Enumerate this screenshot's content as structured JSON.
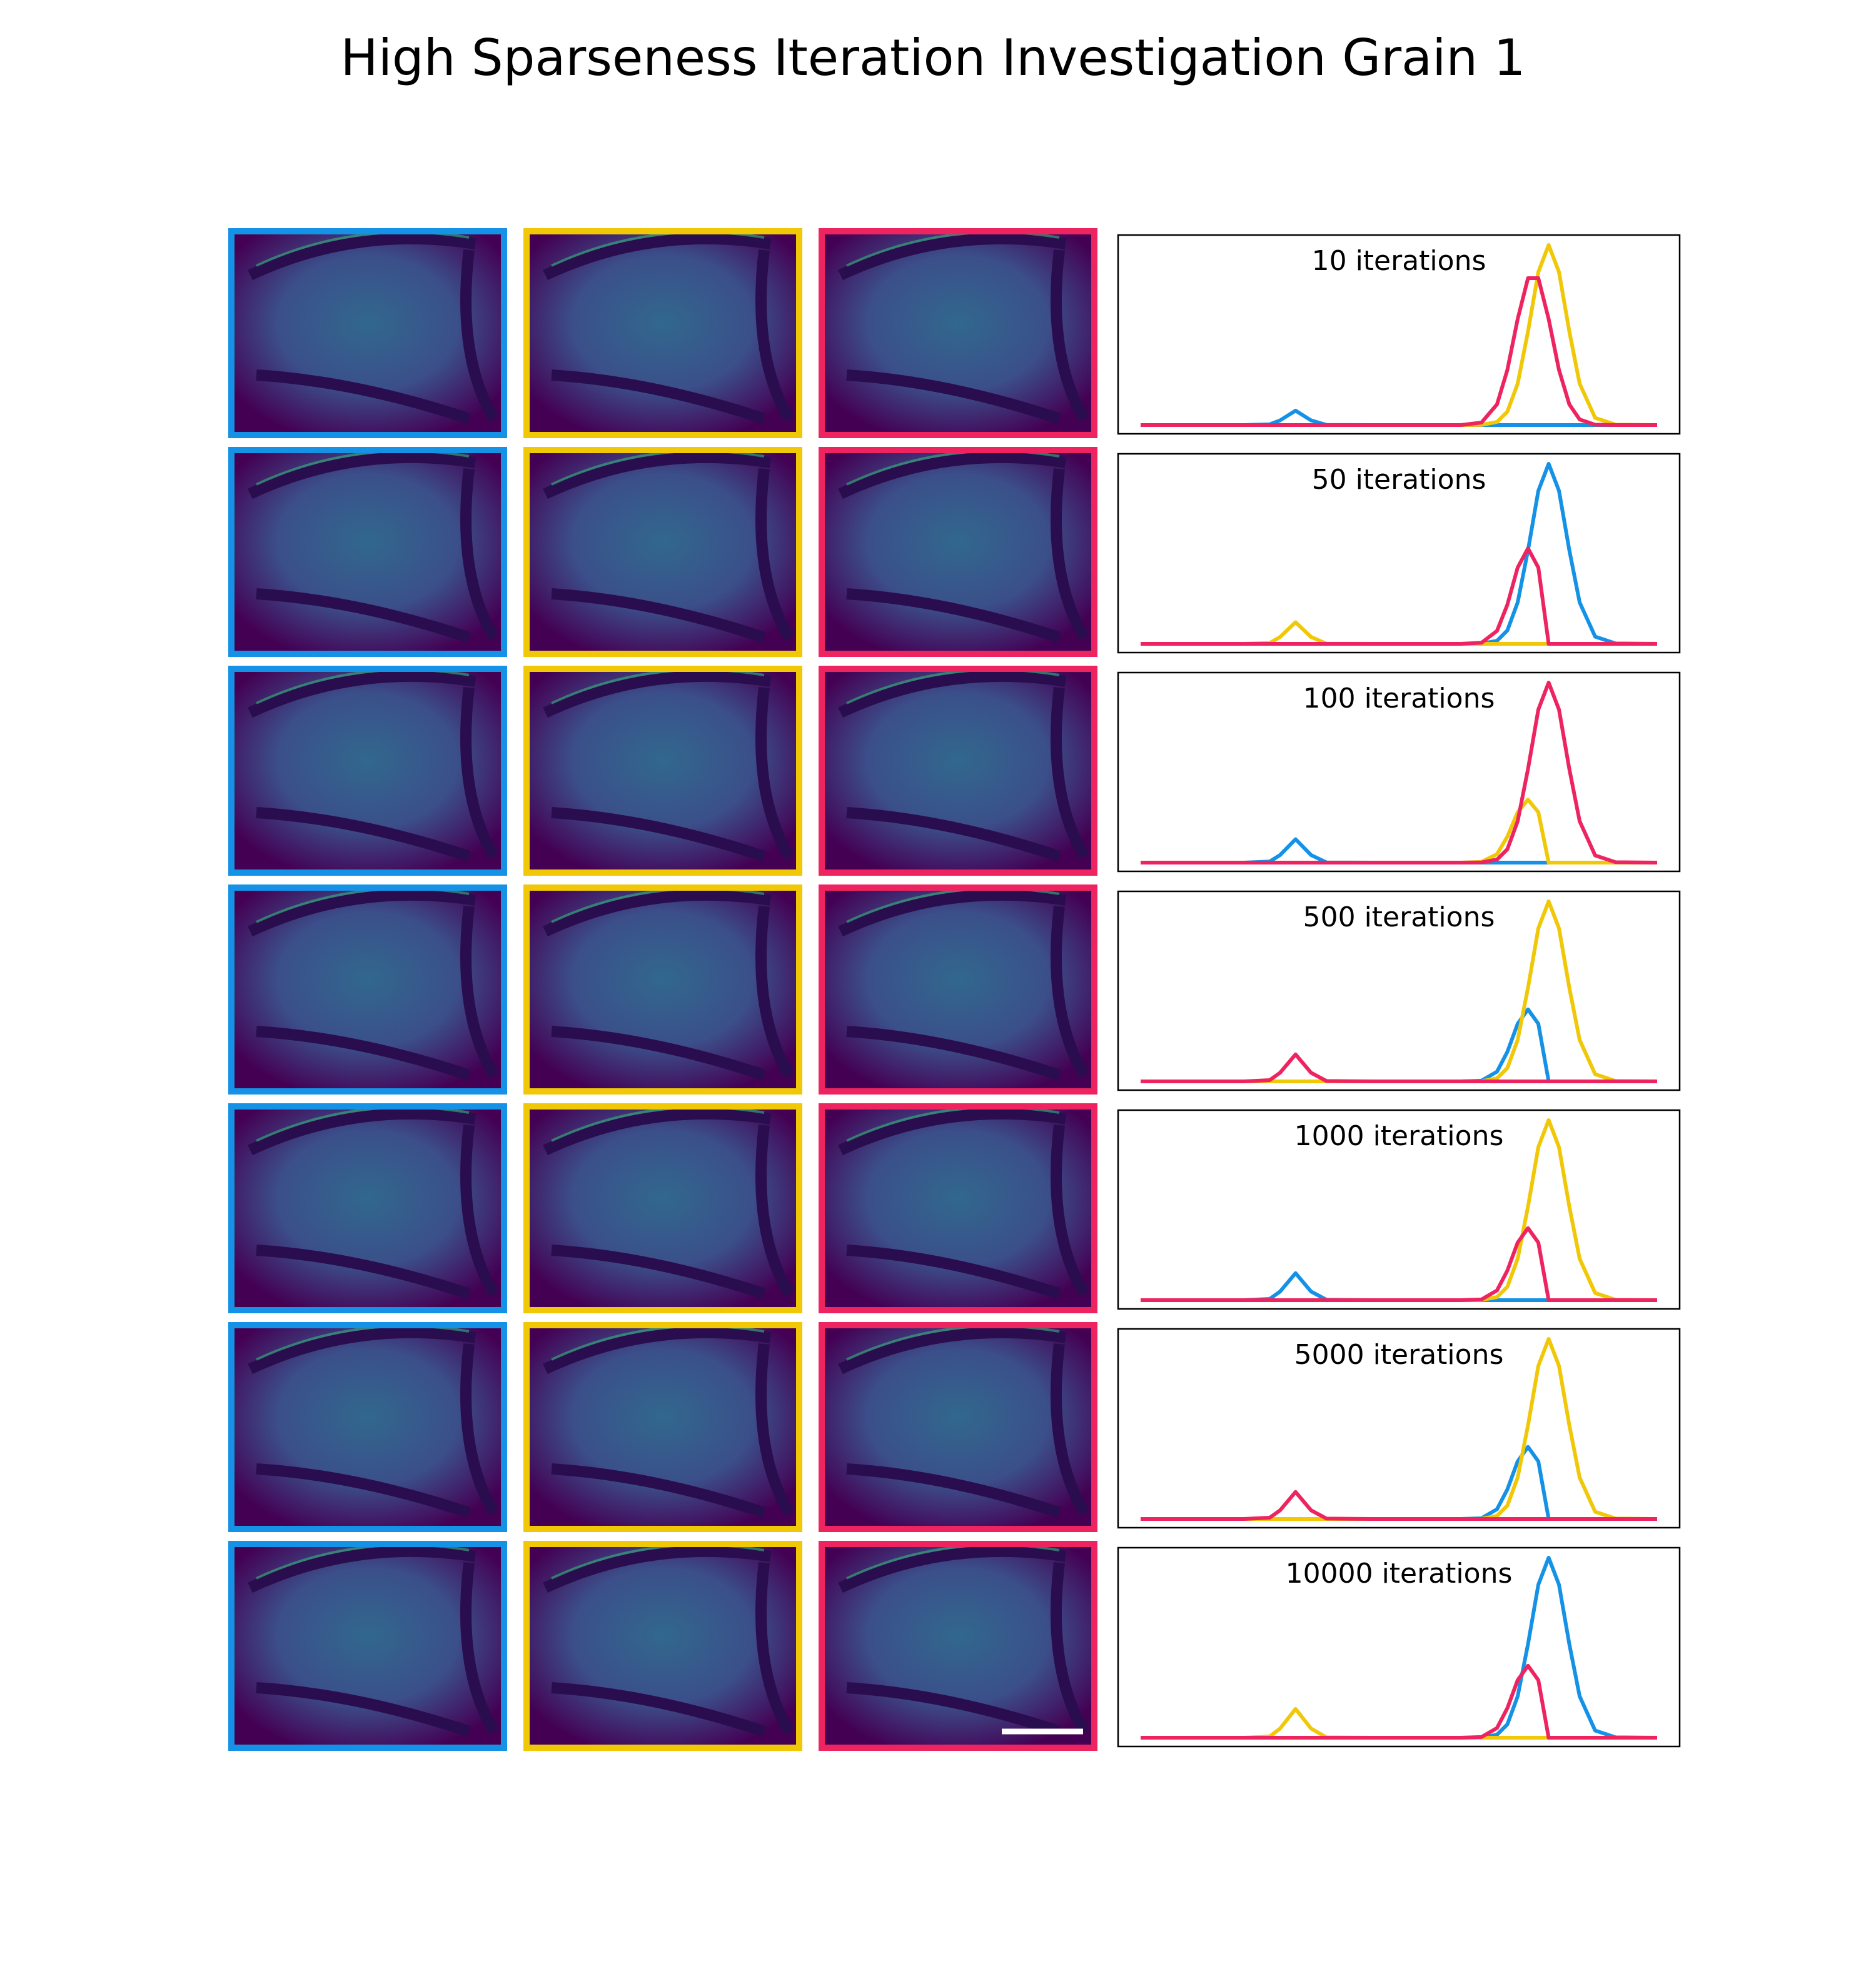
{
  "title": "High Sparseness Iteration Investigation Grain 1",
  "chart_data": [
    {
      "type": "line",
      "title": "10 iterations",
      "xlim": [
        0,
        100
      ],
      "ylim": [
        0,
        1
      ],
      "x": [
        0,
        6,
        12,
        20,
        25,
        27,
        30,
        33,
        36,
        45,
        55,
        62,
        66,
        69,
        71,
        73,
        75,
        77,
        79,
        81,
        83,
        85,
        88,
        92,
        100
      ],
      "series": [
        {
          "color": "#1592e6",
          "values": [
            0,
            0,
            0,
            0,
            0.004,
            0.026,
            0.08,
            0.026,
            0.001,
            0,
            0,
            0,
            0,
            0,
            0,
            0,
            0,
            0,
            0,
            0,
            0,
            0,
            0,
            0,
            0
          ]
        },
        {
          "color": "#f0c808",
          "values": [
            0,
            0,
            0,
            0,
            0,
            0,
            0,
            0,
            0,
            0,
            0,
            0,
            0.001,
            0.017,
            0.074,
            0.23,
            0.52,
            0.85,
            1,
            0.85,
            0.52,
            0.23,
            0.04,
            0.002,
            0
          ]
        },
        {
          "color": "#ee2461",
          "values": [
            0,
            0,
            0,
            0,
            0,
            0,
            0,
            0,
            0,
            0,
            0,
            0,
            0.014,
            0.115,
            0.306,
            0.589,
            0.816,
            0.816,
            0.589,
            0.306,
            0.115,
            0.031,
            0.002,
            0,
            0
          ]
        }
      ]
    },
    {
      "type": "line",
      "title": "50 iterations",
      "xlim": [
        0,
        100
      ],
      "ylim": [
        0,
        1
      ],
      "x": [
        0,
        6,
        12,
        20,
        25,
        27,
        30,
        33,
        36,
        45,
        55,
        62,
        66,
        69,
        71,
        73,
        75,
        77,
        79,
        81,
        83,
        85,
        88,
        92,
        100
      ],
      "series": [
        {
          "color": "#1592e6",
          "values": [
            0,
            0,
            0,
            0,
            0,
            0,
            0,
            0,
            0,
            0,
            0,
            0,
            0.001,
            0.017,
            0.074,
            0.23,
            0.52,
            0.85,
            1,
            0.85,
            0.52,
            0.23,
            0.04,
            0.002,
            0
          ]
        },
        {
          "color": "#f0c808",
          "values": [
            0,
            0,
            0,
            0,
            0.005,
            0.038,
            0.12,
            0.038,
            0.001,
            0,
            0,
            0,
            0,
            0,
            0,
            0,
            0,
            0,
            0,
            0,
            0,
            0,
            0,
            0,
            0
          ]
        },
        {
          "color": "#ee2461",
          "values": [
            0,
            0,
            0,
            0,
            0,
            0,
            0,
            0,
            0,
            0,
            0,
            0,
            0.006,
            0.072,
            0.217,
            0.424,
            0.53,
            0.424,
            0,
            0,
            0,
            0,
            0,
            0,
            0
          ]
        }
      ]
    },
    {
      "type": "line",
      "title": "100 iterations",
      "xlim": [
        0,
        100
      ],
      "ylim": [
        0,
        1
      ],
      "x": [
        0,
        6,
        12,
        20,
        25,
        27,
        30,
        33,
        36,
        45,
        55,
        62,
        66,
        69,
        71,
        73,
        75,
        77,
        79,
        81,
        83,
        85,
        88,
        92,
        100
      ],
      "series": [
        {
          "color": "#1592e6",
          "values": [
            0,
            0,
            0,
            0,
            0.006,
            0.042,
            0.13,
            0.042,
            0.001,
            0,
            0,
            0,
            0,
            0,
            0,
            0,
            0,
            0,
            0,
            0,
            0,
            0,
            0,
            0,
            0
          ]
        },
        {
          "color": "#f0c808",
          "values": [
            0,
            0,
            0,
            0,
            0,
            0,
            0,
            0,
            0,
            0,
            0,
            0,
            0.004,
            0.047,
            0.144,
            0.28,
            0.35,
            0.28,
            0,
            0,
            0,
            0,
            0,
            0,
            0
          ]
        },
        {
          "color": "#ee2461",
          "values": [
            0,
            0,
            0,
            0,
            0,
            0,
            0,
            0,
            0,
            0,
            0,
            0,
            0.001,
            0.017,
            0.074,
            0.23,
            0.52,
            0.85,
            1,
            0.85,
            0.52,
            0.23,
            0.04,
            0.002,
            0
          ]
        }
      ]
    },
    {
      "type": "line",
      "title": "500 iterations",
      "xlim": [
        0,
        100
      ],
      "ylim": [
        0,
        1
      ],
      "x": [
        0,
        6,
        12,
        20,
        25,
        27,
        30,
        33,
        36,
        45,
        55,
        62,
        66,
        69,
        71,
        73,
        75,
        77,
        79,
        81,
        83,
        85,
        88,
        92,
        100
      ],
      "series": [
        {
          "color": "#1592e6",
          "values": [
            0,
            0,
            0,
            0,
            0,
            0,
            0,
            0,
            0,
            0,
            0,
            0,
            0.004,
            0.054,
            0.164,
            0.32,
            0.4,
            0.32,
            0,
            0,
            0,
            0,
            0,
            0,
            0
          ]
        },
        {
          "color": "#f0c808",
          "values": [
            0,
            0,
            0,
            0,
            0,
            0,
            0,
            0,
            0,
            0,
            0,
            0,
            0.001,
            0.017,
            0.074,
            0.23,
            0.52,
            0.85,
            1,
            0.85,
            0.52,
            0.23,
            0.04,
            0.002,
            0
          ]
        },
        {
          "color": "#ee2461",
          "values": [
            0,
            0,
            0,
            0,
            0.007,
            0.048,
            0.15,
            0.048,
            0.002,
            0,
            0,
            0,
            0,
            0,
            0,
            0,
            0,
            0,
            0,
            0,
            0,
            0,
            0,
            0,
            0
          ]
        }
      ]
    },
    {
      "type": "line",
      "title": "1000 iterations",
      "xlim": [
        0,
        100
      ],
      "ylim": [
        0,
        1
      ],
      "x": [
        0,
        6,
        12,
        20,
        25,
        27,
        30,
        33,
        36,
        45,
        55,
        62,
        66,
        69,
        71,
        73,
        75,
        77,
        79,
        81,
        83,
        85,
        88,
        92,
        100
      ],
      "series": [
        {
          "color": "#1592e6",
          "values": [
            0,
            0,
            0,
            0,
            0.007,
            0.048,
            0.15,
            0.048,
            0.002,
            0,
            0,
            0,
            0,
            0,
            0,
            0,
            0,
            0,
            0,
            0,
            0,
            0,
            0,
            0,
            0
          ]
        },
        {
          "color": "#f0c808",
          "values": [
            0,
            0,
            0,
            0,
            0,
            0,
            0,
            0,
            0,
            0,
            0,
            0,
            0.001,
            0.017,
            0.074,
            0.23,
            0.52,
            0.85,
            1,
            0.85,
            0.52,
            0.23,
            0.04,
            0.002,
            0
          ]
        },
        {
          "color": "#ee2461",
          "values": [
            0,
            0,
            0,
            0,
            0,
            0,
            0,
            0,
            0,
            0,
            0,
            0,
            0.004,
            0.054,
            0.164,
            0.32,
            0.4,
            0.32,
            0,
            0,
            0,
            0,
            0,
            0,
            0
          ]
        }
      ]
    },
    {
      "type": "line",
      "title": "5000 iterations",
      "xlim": [
        0,
        100
      ],
      "ylim": [
        0,
        1
      ],
      "x": [
        0,
        6,
        12,
        20,
        25,
        27,
        30,
        33,
        36,
        45,
        55,
        62,
        66,
        69,
        71,
        73,
        75,
        77,
        79,
        81,
        83,
        85,
        88,
        92,
        100
      ],
      "series": [
        {
          "color": "#1592e6",
          "values": [
            0,
            0,
            0,
            0,
            0,
            0,
            0,
            0,
            0,
            0,
            0,
            0,
            0.004,
            0.054,
            0.164,
            0.32,
            0.4,
            0.32,
            0,
            0,
            0,
            0,
            0,
            0,
            0
          ]
        },
        {
          "color": "#f0c808",
          "values": [
            0,
            0,
            0,
            0,
            0,
            0,
            0,
            0,
            0,
            0,
            0,
            0,
            0.001,
            0.017,
            0.074,
            0.23,
            0.52,
            0.85,
            1,
            0.85,
            0.52,
            0.23,
            0.04,
            0.002,
            0
          ]
        },
        {
          "color": "#ee2461",
          "values": [
            0,
            0,
            0,
            0,
            0.007,
            0.048,
            0.15,
            0.048,
            0.002,
            0,
            0,
            0,
            0,
            0,
            0,
            0,
            0,
            0,
            0,
            0,
            0,
            0,
            0,
            0,
            0
          ]
        }
      ]
    },
    {
      "type": "line",
      "title": "10000 iterations",
      "xlim": [
        0,
        100
      ],
      "ylim": [
        0,
        1
      ],
      "x": [
        0,
        6,
        12,
        20,
        25,
        27,
        30,
        33,
        36,
        45,
        55,
        62,
        66,
        69,
        71,
        73,
        75,
        77,
        79,
        81,
        83,
        85,
        88,
        92,
        100
      ],
      "series": [
        {
          "color": "#1592e6",
          "values": [
            0,
            0,
            0,
            0,
            0,
            0,
            0,
            0,
            0,
            0,
            0,
            0,
            0.001,
            0.017,
            0.074,
            0.23,
            0.52,
            0.85,
            1,
            0.85,
            0.52,
            0.23,
            0.04,
            0.002,
            0
          ]
        },
        {
          "color": "#f0c808",
          "values": [
            0,
            0,
            0,
            0,
            0.007,
            0.051,
            0.16,
            0.051,
            0.002,
            0,
            0,
            0,
            0,
            0,
            0,
            0,
            0,
            0,
            0,
            0,
            0,
            0,
            0,
            0,
            0
          ]
        },
        {
          "color": "#ee2461",
          "values": [
            0,
            0,
            0,
            0,
            0,
            0,
            0,
            0,
            0,
            0,
            0,
            0,
            0.004,
            0.054,
            0.164,
            0.32,
            0.4,
            0.32,
            0,
            0,
            0,
            0,
            0,
            0,
            0
          ]
        }
      ]
    }
  ]
}
